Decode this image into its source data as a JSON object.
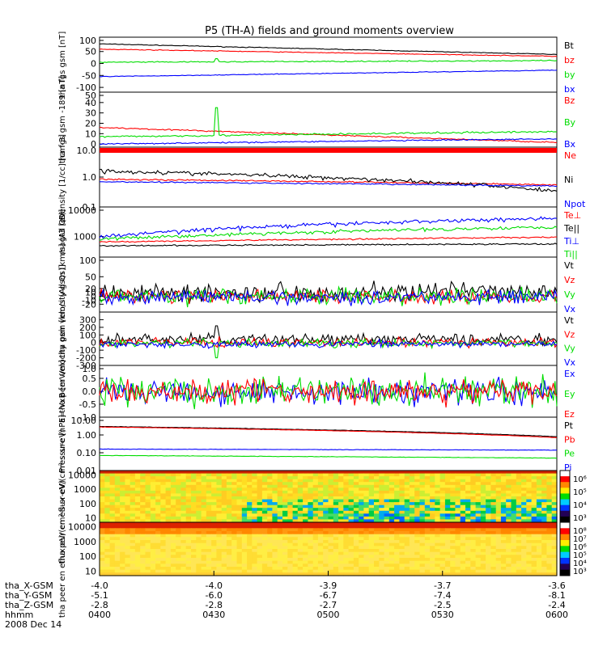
{
  "title": "P5 (TH-A) fields and ground moments overview",
  "colorbar_ticks_top": [
    "10⁶",
    "10⁵",
    "10⁴",
    "10³"
  ],
  "colorbar_ticks_bottom": [
    "10⁸",
    "10⁷",
    "10⁶",
    "10⁵",
    "10⁴",
    "10³"
  ],
  "orbit": {
    "time_ticks": [
      "0400",
      "0430",
      "0500",
      "0530",
      "0600"
    ],
    "rows": [
      {
        "label": "tha_X-GSM",
        "values": [
          "-4.0",
          "-4.0",
          "-3.9",
          "-3.7",
          "-3.6"
        ]
      },
      {
        "label": "tha_Y-GSM",
        "values": [
          "-5.1",
          "-6.0",
          "-6.7",
          "-7.4",
          "-8.1"
        ]
      },
      {
        "label": "tha_Z-GSM",
        "values": [
          "-2.8",
          "-2.8",
          "-2.7",
          "-2.5",
          "-2.4"
        ]
      },
      {
        "label": "hhmm",
        "values": [
          "0400",
          "0430",
          "0500",
          "0530",
          "0600"
        ]
      }
    ],
    "date": "2008 Dec 14"
  },
  "colors": {
    "black": "#000000",
    "red": "#ff0000",
    "green": "#00dd00",
    "blue": "#0000ff"
  },
  "chart_data": [
    {
      "type": "line",
      "ylabel": "tha fgs gsm [nT]",
      "ylim": [
        -120,
        110
      ],
      "yticks": [
        "100",
        "50",
        "0",
        "-50",
        "-100"
      ],
      "series": [
        {
          "name": "Bt",
          "color": "black",
          "start": 82,
          "end": 38,
          "noise": 0.5
        },
        {
          "name": "bz",
          "color": "red",
          "start": 60,
          "end": 30,
          "noise": 0.5
        },
        {
          "name": "by",
          "color": "green",
          "start": 5,
          "end": 12,
          "noise": 0.8,
          "spike": 20
        },
        {
          "name": "bx",
          "color": "blue",
          "start": -55,
          "end": -28,
          "noise": 0.5
        }
      ]
    },
    {
      "type": "line",
      "ylabel": "tha fgs gsm -189 [nT]",
      "ylim": [
        -3,
        50
      ],
      "yticks": [
        "50",
        "40",
        "30",
        "20",
        "10",
        "0"
      ],
      "series": [
        {
          "name": "Bz",
          "color": "red",
          "start": 16,
          "end": 1.5,
          "noise": 0.2
        },
        {
          "name": "By",
          "color": "green",
          "start": 7,
          "end": 12,
          "noise": 0.3,
          "spike": 35
        },
        {
          "name": "Bx",
          "color": "blue",
          "start": 0,
          "end": 5,
          "noise": 0.2
        }
      ]
    },
    {
      "type": "line",
      "log": true,
      "ylabel": "Density [1/cc] [cm-3]",
      "ylim": [
        0.1,
        10
      ],
      "yticks": [
        "10.0",
        "1.0",
        "0.1"
      ],
      "series": [
        {
          "name": "Ne",
          "color": "red",
          "start": 0.85,
          "end": 0.55,
          "noise": 0.02
        },
        {
          "name": "Ni",
          "color": "black",
          "start": 1.6,
          "end": 0.33,
          "noise": 0.06
        },
        {
          "name": "Npot",
          "color": "blue",
          "start": 0.7,
          "end": 0.5,
          "noise": 0.02
        }
      ]
    },
    {
      "type": "line",
      "log": true,
      "ylabel": "magt3 [eV]",
      "ylim": [
        200,
        10000
      ],
      "yticks": [
        "10000",
        "1000"
      ],
      "series": [
        {
          "name": "Te⊥",
          "color": "red",
          "start": 650,
          "end": 950,
          "noise": 0.02
        },
        {
          "name": "Te||",
          "color": "black",
          "start": 480,
          "end": 560,
          "noise": 0.02
        },
        {
          "name": "Ti⊥",
          "color": "blue",
          "start": 950,
          "end": 4200,
          "noise": 0.06
        },
        {
          "name": "Ti||",
          "color": "green",
          "start": 800,
          "end": 2100,
          "noise": 0.05
        }
      ]
    },
    {
      "type": "line",
      "ylabel": "tha peir velocity gsm [km/s] (All Qs)",
      "ylim": [
        -40,
        100
      ],
      "yticks": [
        "100",
        "50",
        "20",
        "10",
        "0",
        "-10",
        "-20"
      ],
      "series": [
        {
          "name": "Vt",
          "color": "black",
          "start": 10,
          "end": 12,
          "noise": 8
        },
        {
          "name": "Vz",
          "color": "red",
          "start": 0,
          "end": 0,
          "noise": 6
        },
        {
          "name": "Vy",
          "color": "green",
          "start": 0,
          "end": 0,
          "noise": 7
        },
        {
          "name": "Vx",
          "color": "blue",
          "start": -2,
          "end": -2,
          "noise": 6
        }
      ]
    },
    {
      "type": "line",
      "ylabel": "tha peer velocity gsm [km/s (All Qs)]",
      "ylim": [
        -300,
        400
      ],
      "yticks": [
        "300",
        "200",
        "100",
        "0",
        "-100",
        "-200",
        "-300"
      ],
      "series": [
        {
          "name": "Vt",
          "color": "black",
          "start": 40,
          "end": 40,
          "noise": 25,
          "spike": 220
        },
        {
          "name": "Vz",
          "color": "red",
          "start": 0,
          "end": 0,
          "noise": 20
        },
        {
          "name": "Vy",
          "color": "green",
          "start": -10,
          "end": -10,
          "noise": 18,
          "spike": -200
        },
        {
          "name": "Vx",
          "color": "blue",
          "start": -20,
          "end": -20,
          "noise": 15
        }
      ]
    },
    {
      "type": "line",
      "ylabel": "E=-VxB [mV/m]",
      "ylim": [
        -1.0,
        1.0
      ],
      "yticks": [
        "1.0",
        "0.5",
        "0.0",
        "-0.5",
        "-1.0"
      ],
      "series": [
        {
          "name": "Ex",
          "color": "blue",
          "start": 0,
          "end": 0,
          "noise": 0.18
        },
        {
          "name": "Ey",
          "color": "green",
          "start": 0,
          "end": 0,
          "noise": 0.2
        },
        {
          "name": "Ez",
          "color": "red",
          "start": 0,
          "end": 0,
          "noise": 0.16
        }
      ]
    },
    {
      "type": "line",
      "log": true,
      "ylabel": "Pressure [nPa]",
      "ylim": [
        0.01,
        10
      ],
      "yticks": [
        "10.00",
        "1.00",
        "0.10",
        "0.01"
      ],
      "series": [
        {
          "name": "Pt",
          "color": "black",
          "start": 3.0,
          "end": 0.8,
          "noise": 0.01
        },
        {
          "name": "Pb",
          "color": "red",
          "start": 2.8,
          "end": 0.7,
          "noise": 0.01
        },
        {
          "name": "Pe",
          "color": "green",
          "start": 0.07,
          "end": 0.05,
          "noise": 0.01
        },
        {
          "name": "Pi",
          "color": "blue",
          "start": 0.16,
          "end": 0.14,
          "noise": 0.01
        }
      ]
    },
    {
      "type": "heatmap",
      "ylabel": "tha peir en eflux eV/(cm²-s-sr-eV)",
      "ylim": [
        5,
        20000
      ],
      "yticks": [
        "10000",
        "1000",
        "100",
        "10"
      ]
    },
    {
      "type": "heatmap",
      "ylabel": "tha peer en eflux eV/(cm²-s-sr-eV)",
      "ylim": [
        5,
        20000
      ],
      "yticks": [
        "10000",
        "1000",
        "100",
        "10"
      ]
    }
  ]
}
